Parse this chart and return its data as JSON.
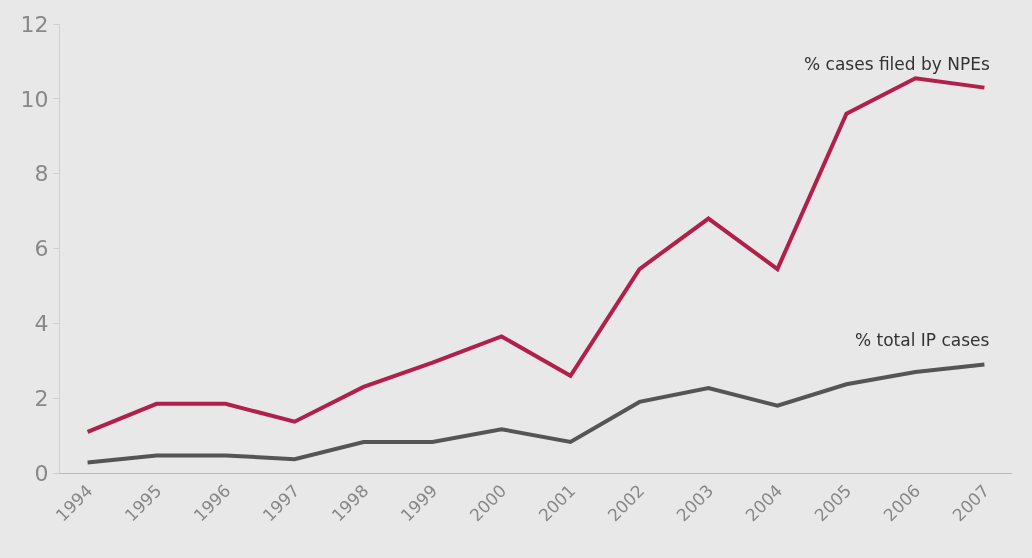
{
  "chart_data": {
    "type": "line",
    "categories": [
      "1994",
      "1995",
      "1996",
      "1997",
      "1998",
      "1999",
      "2000",
      "2001",
      "2002",
      "2003",
      "2004",
      "2005",
      "2006",
      "2007"
    ],
    "series": [
      {
        "name": "% cases filed by NPEs",
        "color": "#b0204a",
        "values": [
          1.1,
          1.85,
          1.85,
          1.37,
          2.3,
          2.95,
          3.65,
          2.6,
          5.45,
          6.8,
          5.45,
          9.6,
          10.55,
          10.3
        ]
      },
      {
        "name": "% total IP cases",
        "color": "#555555",
        "values": [
          0.28,
          0.47,
          0.47,
          0.37,
          0.83,
          0.83,
          1.17,
          0.83,
          1.9,
          2.27,
          1.8,
          2.37,
          2.7,
          2.9
        ]
      }
    ],
    "ylim": [
      0,
      12
    ],
    "yticks": [
      0,
      2,
      4,
      6,
      8,
      10,
      12
    ],
    "grid": false,
    "legend": false,
    "marker": "none",
    "line_style": "solid"
  }
}
